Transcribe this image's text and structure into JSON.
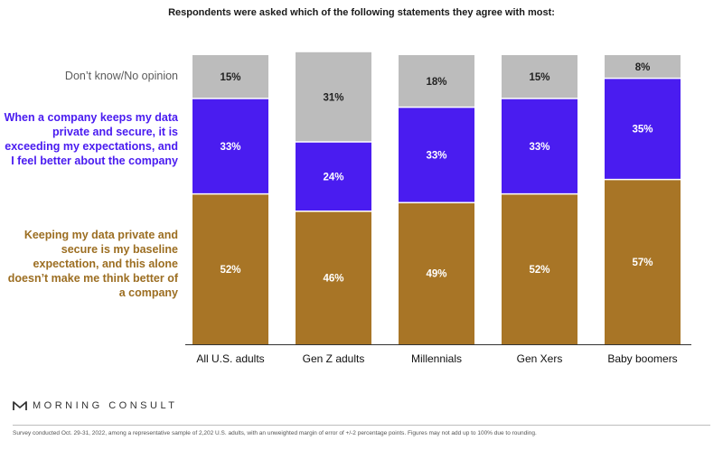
{
  "header": {
    "title": "Respondents were asked which of the following statements they agree with most:"
  },
  "legend": {
    "dont_know": "Don’t know/No opinion",
    "exceeding": "When a company keeps my data private and secure, it is exceeding my expectations, and I feel better about the company",
    "baseline": "Keeping my data private and secure is my baseline expectation, and this alone doesn’t make me think better of a company"
  },
  "footer": {
    "brand": "MORNING CONSULT",
    "note": "Survey conducted Oct. 29-31, 2022, among a representative sample of 2,202 U.S. adults, with an unweighted margin of error of +/-2 percentage points. Figures may not add up to 100% due to rounding."
  },
  "chart_data": {
    "type": "bar",
    "stacked": true,
    "categories": [
      "All U.S. adults",
      "Gen Z adults",
      "Millennials",
      "Gen Xers",
      "Baby boomers"
    ],
    "series": [
      {
        "name": "Keeping my data private and secure is my baseline expectation, and this alone doesn’t make me think better of a company",
        "values": [
          52,
          46,
          49,
          52,
          57
        ],
        "labels": [
          "52%",
          "46%",
          "49%",
          "52%",
          "57%"
        ],
        "color": "#a87526"
      },
      {
        "name": "When a company keeps my data private and secure, it is exceeding my expectations, and I feel better about the company",
        "values": [
          33,
          24,
          33,
          33,
          35
        ],
        "labels": [
          "33%",
          "24%",
          "33%",
          "33%",
          "35%"
        ],
        "color": "#4a1cf0"
      },
      {
        "name": "Don’t know/No opinion",
        "values": [
          15,
          31,
          18,
          15,
          8
        ],
        "labels": [
          "15%",
          "31%",
          "18%",
          "15%",
          "8%"
        ],
        "color": "#bcbcbc"
      }
    ],
    "ylim": [
      0,
      100
    ],
    "grid": false,
    "legend_position": "left"
  }
}
